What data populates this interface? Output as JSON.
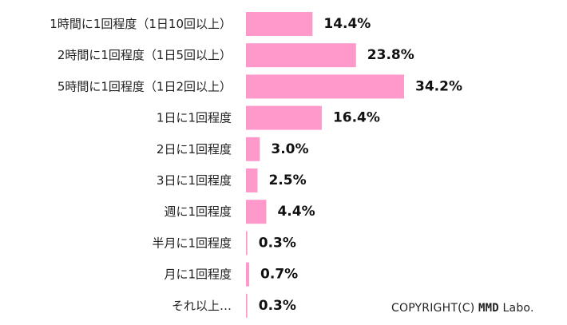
{
  "chart_data": {
    "type": "bar",
    "orientation": "horizontal",
    "categories": [
      "1時間に1回程度（1日10回以上）",
      "2時間に1回程度（1日5回以上）",
      "5時間に1回程度（1日2回以上）",
      "1日に1回程度",
      "2日に1回程度",
      "3日に1回程度",
      "週に1回程度",
      "半月に1回程度",
      "月に1回程度",
      "それ以上…"
    ],
    "values": [
      14.4,
      23.8,
      34.2,
      16.4,
      3.0,
      2.5,
      4.4,
      0.3,
      0.7,
      0.3
    ],
    "value_labels": [
      "14.4%",
      "23.8%",
      "34.2%",
      "16.4%",
      "3.0%",
      "2.5%",
      "4.4%",
      "0.3%",
      "0.7%",
      "0.3%"
    ],
    "title": "",
    "xlabel": "",
    "ylabel": "",
    "xlim": [
      0,
      34.2
    ],
    "grid": false,
    "bar_color": "#ff99cc"
  },
  "footer": {
    "copyright_prefix": "COPYRIGHT(C) ",
    "copyright_brand": "MMD",
    "copyright_suffix": " Labo."
  }
}
